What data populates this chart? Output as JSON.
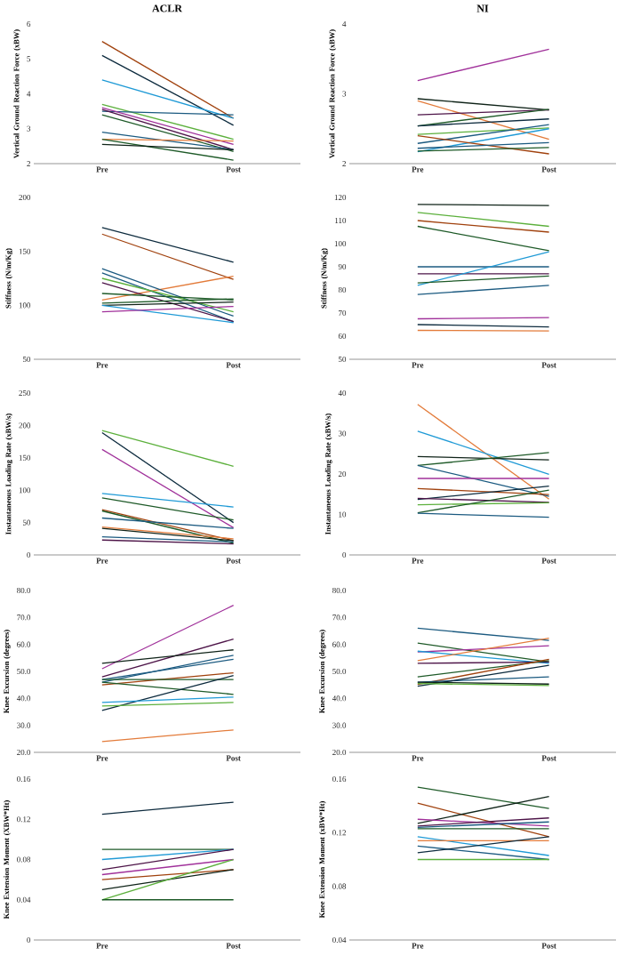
{
  "chart_data": [
    {
      "type": "line",
      "title": "ACLR",
      "ylabel": "Vertical Ground Reaction Force (xBW)",
      "categories": [
        "Pre",
        "Post"
      ],
      "ylim": [
        2,
        6
      ],
      "yticks": [
        2,
        3,
        4,
        5,
        6
      ],
      "series": [
        {
          "color": "#a0410d",
          "values": [
            5.5,
            3.3
          ]
        },
        {
          "color": "#0d2b3e",
          "values": [
            5.1,
            3.1
          ]
        },
        {
          "color": "#1f9ad6",
          "values": [
            4.4,
            3.3
          ]
        },
        {
          "color": "#5cb03c",
          "values": [
            3.7,
            2.7
          ]
        },
        {
          "color": "#1b5a80",
          "values": [
            3.5,
            3.4
          ]
        },
        {
          "color": "#a0309a",
          "values": [
            3.6,
            2.55
          ]
        },
        {
          "color": "#4d1448",
          "values": [
            3.55,
            2.4
          ]
        },
        {
          "color": "#1e5a28",
          "values": [
            3.4,
            2.35
          ]
        },
        {
          "color": "#1b5a80",
          "values": [
            2.9,
            2.4
          ]
        },
        {
          "color": "#e37b3a",
          "values": [
            2.7,
            2.65
          ]
        },
        {
          "color": "#1e5a28",
          "values": [
            2.7,
            2.1
          ]
        },
        {
          "color": "#0f2318",
          "values": [
            2.55,
            2.4
          ]
        }
      ]
    },
    {
      "type": "line",
      "title": "NI",
      "ylabel": "Vertical Ground Reaction Force (xBW)",
      "categories": [
        "Pre",
        "Post"
      ],
      "ylim": [
        2,
        4
      ],
      "yticks": [
        2,
        3,
        4
      ],
      "series": [
        {
          "color": "#a0309a",
          "values": [
            3.19,
            3.64
          ]
        },
        {
          "color": "#0f2318",
          "values": [
            2.93,
            2.77
          ]
        },
        {
          "color": "#e37b3a",
          "values": [
            2.9,
            2.35
          ]
        },
        {
          "color": "#4d1448",
          "values": [
            2.7,
            2.77
          ]
        },
        {
          "color": "#1e5a28",
          "values": [
            2.54,
            2.78
          ]
        },
        {
          "color": "#0d2b3e",
          "values": [
            2.54,
            2.64
          ]
        },
        {
          "color": "#5cb03c",
          "values": [
            2.42,
            2.51
          ]
        },
        {
          "color": "#1b5a80",
          "values": [
            2.29,
            2.56
          ]
        },
        {
          "color": "#1f9ad6",
          "values": [
            2.17,
            2.5
          ]
        },
        {
          "color": "#a0410d",
          "values": [
            2.4,
            2.14
          ]
        },
        {
          "color": "#1b5a80",
          "values": [
            2.22,
            2.3
          ]
        },
        {
          "color": "#1e5a28",
          "values": [
            2.18,
            2.23
          ]
        }
      ]
    },
    {
      "type": "line",
      "ylabel": "Stiffness (N/m/Kg)",
      "categories": [
        "Pre",
        "Post"
      ],
      "ylim": [
        50,
        200
      ],
      "yticks": [
        50,
        100,
        150,
        200
      ],
      "series": [
        {
          "color": "#0d2b3e",
          "values": [
            172,
            140
          ]
        },
        {
          "color": "#a0410d",
          "values": [
            166,
            124
          ]
        },
        {
          "color": "#e37b3a",
          "values": [
            105,
            127
          ]
        },
        {
          "color": "#1b5a80",
          "values": [
            134,
            90
          ]
        },
        {
          "color": "#1b5a80",
          "values": [
            130,
            85
          ]
        },
        {
          "color": "#5cb03c",
          "values": [
            125,
            94
          ]
        },
        {
          "color": "#4d1448",
          "values": [
            121,
            85
          ]
        },
        {
          "color": "#1e5a28",
          "values": [
            111,
            105
          ]
        },
        {
          "color": "#1e5a28",
          "values": [
            102,
            106
          ]
        },
        {
          "color": "#0f2318",
          "values": [
            100,
            103
          ]
        },
        {
          "color": "#1f9ad6",
          "values": [
            100,
            84
          ]
        },
        {
          "color": "#a0309a",
          "values": [
            94,
            99
          ]
        }
      ]
    },
    {
      "type": "line",
      "ylabel": "Stiffness (N/m/Kg)",
      "categories": [
        "Pre",
        "Post"
      ],
      "ylim": [
        50,
        120
      ],
      "yticks": [
        50,
        60,
        70,
        80,
        90,
        100,
        110,
        120
      ],
      "series": [
        {
          "color": "#0f2318",
          "values": [
            117,
            116.5
          ]
        },
        {
          "color": "#5cb03c",
          "values": [
            113.5,
            107.5
          ]
        },
        {
          "color": "#a0410d",
          "values": [
            110,
            105
          ]
        },
        {
          "color": "#1e5a28",
          "values": [
            107.5,
            97
          ]
        },
        {
          "color": "#1b5a80",
          "values": [
            90,
            90
          ]
        },
        {
          "color": "#4d1448",
          "values": [
            87,
            87
          ]
        },
        {
          "color": "#1f9ad6",
          "values": [
            82,
            96.5
          ]
        },
        {
          "color": "#1e5a28",
          "values": [
            83,
            86
          ]
        },
        {
          "color": "#1b5a80",
          "values": [
            78,
            82
          ]
        },
        {
          "color": "#a0309a",
          "values": [
            67.5,
            68
          ]
        },
        {
          "color": "#0d2b3e",
          "values": [
            65,
            64
          ]
        },
        {
          "color": "#e37b3a",
          "values": [
            62.5,
            62.3
          ]
        }
      ]
    },
    {
      "type": "line",
      "ylabel": "Instantaneous Loading Rate (xBW/s)",
      "categories": [
        "Pre",
        "Post"
      ],
      "ylim": [
        0,
        250
      ],
      "yticks": [
        0,
        50,
        100,
        150,
        200,
        250
      ],
      "series": [
        {
          "color": "#5cb03c",
          "values": [
            192,
            137
          ]
        },
        {
          "color": "#0d2b3e",
          "values": [
            189,
            50
          ]
        },
        {
          "color": "#a0309a",
          "values": [
            163,
            42
          ]
        },
        {
          "color": "#1f9ad6",
          "values": [
            95,
            74
          ]
        },
        {
          "color": "#1e5a28",
          "values": [
            88,
            54
          ]
        },
        {
          "color": "#a0410d",
          "values": [
            70,
            22
          ]
        },
        {
          "color": "#1e5a28",
          "values": [
            68,
            18
          ]
        },
        {
          "color": "#1b5a80",
          "values": [
            57,
            41
          ]
        },
        {
          "color": "#e37b3a",
          "values": [
            43,
            25
          ]
        },
        {
          "color": "#0f2318",
          "values": [
            41,
            22
          ]
        },
        {
          "color": "#1b5a80",
          "values": [
            28,
            20
          ]
        },
        {
          "color": "#4d1448",
          "values": [
            23,
            17
          ]
        }
      ]
    },
    {
      "type": "line",
      "ylabel": "Instantaneous Loading Rate (xBW/s)",
      "categories": [
        "Pre",
        "Post"
      ],
      "ylim": [
        0,
        40
      ],
      "yticks": [
        0,
        10,
        20,
        30,
        40
      ],
      "series": [
        {
          "color": "#e37b3a",
          "values": [
            37.2,
            13.8
          ]
        },
        {
          "color": "#1f9ad6",
          "values": [
            30.6,
            19.9
          ]
        },
        {
          "color": "#0f2318",
          "values": [
            24.3,
            23.5
          ]
        },
        {
          "color": "#1e5a28",
          "values": [
            22.1,
            25.3
          ]
        },
        {
          "color": "#1b5a80",
          "values": [
            22.1,
            14.5
          ]
        },
        {
          "color": "#a0309a",
          "values": [
            18.9,
            18.9
          ]
        },
        {
          "color": "#a0410d",
          "values": [
            16.4,
            14.9
          ]
        },
        {
          "color": "#0d2b3e",
          "values": [
            13.7,
            17
          ]
        },
        {
          "color": "#4d1448",
          "values": [
            14,
            13
          ]
        },
        {
          "color": "#5cb03c",
          "values": [
            12.4,
            12.9
          ]
        },
        {
          "color": "#1e5a28",
          "values": [
            10.4,
            16
          ]
        },
        {
          "color": "#1b5a80",
          "values": [
            10.3,
            9.3
          ]
        }
      ]
    },
    {
      "type": "line",
      "ylabel": "Knee Excursion (degrees)",
      "categories": [
        "Pre",
        "Post"
      ],
      "ylim": [
        20,
        80
      ],
      "yticks": [
        {
          "value": 20,
          "label": "20.0"
        },
        {
          "value": 30,
          "label": "30.0"
        },
        {
          "value": 40,
          "label": "40.0"
        },
        {
          "value": 50,
          "label": "50.0"
        },
        {
          "value": 60,
          "label": "60.0"
        },
        {
          "value": 70,
          "label": "70.0"
        },
        {
          "value": 80,
          "label": "80.0"
        }
      ],
      "series": [
        {
          "color": "#a0309a",
          "values": [
            51,
            74.5
          ]
        },
        {
          "color": "#4d1448",
          "values": [
            48,
            62
          ]
        },
        {
          "color": "#0f2318",
          "values": [
            53,
            58
          ]
        },
        {
          "color": "#1b5a80",
          "values": [
            46,
            56
          ]
        },
        {
          "color": "#1b5a80",
          "values": [
            47,
            54.5
          ]
        },
        {
          "color": "#a0410d",
          "values": [
            45,
            49.5
          ]
        },
        {
          "color": "#1e5a28",
          "values": [
            47,
            47
          ]
        },
        {
          "color": "#1e5a28",
          "values": [
            46,
            41.5
          ]
        },
        {
          "color": "#0d2b3e",
          "values": [
            35.5,
            48.5
          ]
        },
        {
          "color": "#1f9ad6",
          "values": [
            38.5,
            40.5
          ]
        },
        {
          "color": "#5cb03c",
          "values": [
            37.2,
            38.5
          ]
        },
        {
          "color": "#e37b3a",
          "values": [
            24,
            28.3
          ]
        }
      ]
    },
    {
      "type": "line",
      "ylabel": "Knee Excursion (degrees)",
      "categories": [
        "Pre",
        "Post"
      ],
      "ylim": [
        20,
        80
      ],
      "yticks": [
        {
          "value": 20,
          "label": "20.0"
        },
        {
          "value": 30,
          "label": "30.0"
        },
        {
          "value": 40,
          "label": "40.0"
        },
        {
          "value": 50,
          "label": "50.0"
        },
        {
          "value": 60,
          "label": "60.0"
        },
        {
          "value": 70,
          "label": "70.0"
        },
        {
          "value": 80,
          "label": "80.0"
        }
      ],
      "series": [
        {
          "color": "#1b5a80",
          "values": [
            66,
            61.5
          ]
        },
        {
          "color": "#1e5a28",
          "values": [
            60.5,
            53.5
          ]
        },
        {
          "color": "#a0309a",
          "values": [
            57.2,
            59.5
          ]
        },
        {
          "color": "#1f9ad6",
          "values": [
            57.5,
            53
          ]
        },
        {
          "color": "#e37b3a",
          "values": [
            54,
            62.3
          ]
        },
        {
          "color": "#4d1448",
          "values": [
            53,
            53.5
          ]
        },
        {
          "color": "#1e5a28",
          "values": [
            48,
            54
          ]
        },
        {
          "color": "#a0410d",
          "values": [
            45.2,
            54.5
          ]
        },
        {
          "color": "#1b5a80",
          "values": [
            46,
            48
          ]
        },
        {
          "color": "#0d2b3e",
          "values": [
            44.5,
            52.3
          ]
        },
        {
          "color": "#0f2318",
          "values": [
            46,
            45.3
          ]
        },
        {
          "color": "#5cb03c",
          "values": [
            45.5,
            44.8
          ]
        }
      ]
    },
    {
      "type": "line",
      "ylabel": "Knee Extension Moment (XBW*Ht)",
      "categories": [
        "Pre",
        "Post"
      ],
      "ylim": [
        0,
        0.16
      ],
      "yticks": [
        0,
        0.04,
        0.08,
        0.12,
        0.16
      ],
      "series": [
        {
          "color": "#0d2b3e",
          "values": [
            0.125,
            0.137
          ]
        },
        {
          "color": "#1e5a28",
          "values": [
            0.09,
            0.09
          ]
        },
        {
          "color": "#1f9ad6",
          "values": [
            0.08,
            0.09
          ]
        },
        {
          "color": "#4d1448",
          "values": [
            0.07,
            0.09
          ]
        },
        {
          "color": "#a0309a",
          "values": [
            0.065,
            0.08
          ]
        },
        {
          "color": "#a0410d",
          "values": [
            0.06,
            0.07
          ]
        },
        {
          "color": "#0f2318",
          "values": [
            0.05,
            0.07
          ]
        },
        {
          "color": "#5cb03c",
          "values": [
            0.04,
            0.08
          ]
        },
        {
          "color": "#1e5a28",
          "values": [
            0.04,
            0.04
          ]
        }
      ]
    },
    {
      "type": "line",
      "ylabel": "Knee Extension Moment (xBW*Ht)",
      "categories": [
        "Pre",
        "Post"
      ],
      "ylim": [
        0.04,
        0.16
      ],
      "yticks": [
        0.04,
        0.08,
        0.12,
        0.16
      ],
      "series": [
        {
          "color": "#1e5a28",
          "values": [
            0.154,
            0.138
          ]
        },
        {
          "color": "#a0410d",
          "values": [
            0.142,
            0.117
          ]
        },
        {
          "color": "#0f2318",
          "values": [
            0.127,
            0.147
          ]
        },
        {
          "color": "#a0309a",
          "values": [
            0.13,
            0.125
          ]
        },
        {
          "color": "#4d1448",
          "values": [
            0.125,
            0.131
          ]
        },
        {
          "color": "#1b5a80",
          "values": [
            0.124,
            0.128
          ]
        },
        {
          "color": "#1e5a28",
          "values": [
            0.123,
            0.123
          ]
        },
        {
          "color": "#1f9ad6",
          "values": [
            0.117,
            0.103
          ]
        },
        {
          "color": "#e37b3a",
          "values": [
            0.114,
            0.114
          ]
        },
        {
          "color": "#1b5a80",
          "values": [
            0.11,
            0.1
          ]
        },
        {
          "color": "#0d2b3e",
          "values": [
            0.105,
            0.117
          ]
        },
        {
          "color": "#5cb03c",
          "values": [
            0.1,
            0.1
          ]
        }
      ]
    }
  ]
}
